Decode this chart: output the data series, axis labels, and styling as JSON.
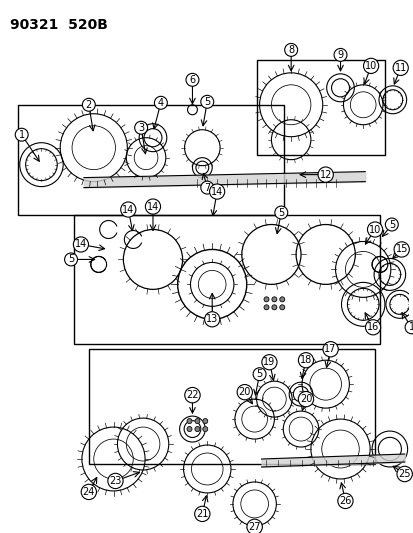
{
  "title": "90321  520B",
  "bg_color": "#ffffff",
  "fg_color": "#000000",
  "fig_width": 4.14,
  "fig_height": 5.33,
  "dpi": 100
}
